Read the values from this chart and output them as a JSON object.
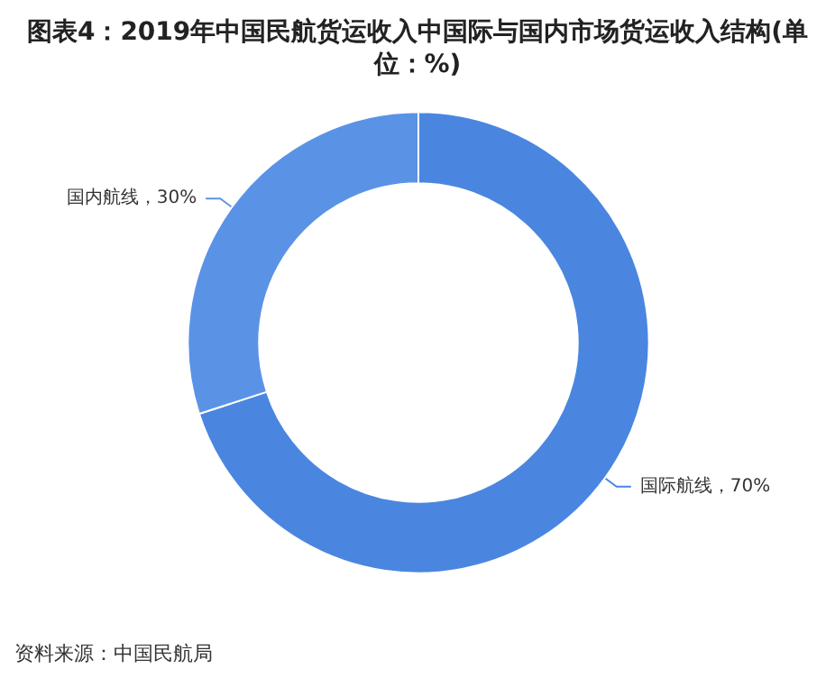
{
  "chart_data": {
    "type": "donut",
    "title": "图表4：2019年中国民航货运收入中国际与国内市场货运收入结构(单位：%)",
    "categories": [
      "国际航线",
      "国内航线"
    ],
    "values": [
      70,
      30
    ],
    "colors": [
      "#4a86e0",
      "#5a93e6"
    ],
    "value_labels": [
      "70%",
      "30%"
    ],
    "annotations": [
      "资料来源：中国民航局"
    ]
  }
}
